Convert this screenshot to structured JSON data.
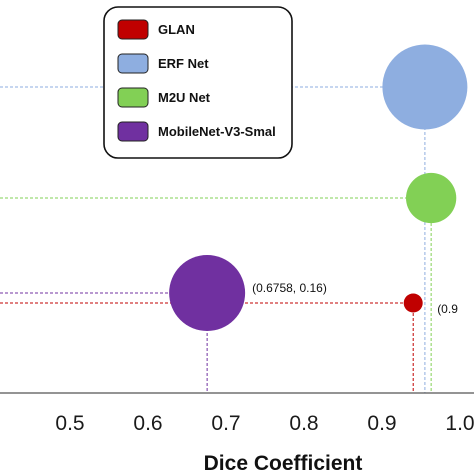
{
  "chart_data": {
    "type": "scatter",
    "title": "",
    "xlabel": "Dice Coefficient",
    "ylabel": "",
    "xlim": [
      0.45,
      1.0
    ],
    "x_ticks": [
      "0.5",
      "0.6",
      "0.7",
      "0.8",
      "0.9",
      "1.0"
    ],
    "legend_position": "top-center",
    "grid": false,
    "series": [
      {
        "name": "GLAN",
        "color": "#c00000",
        "x": 0.94,
        "size": 0.01
      },
      {
        "name": "ERF Net",
        "color": "#8eaee0",
        "x": 0.955,
        "size": 0.2
      },
      {
        "name": "M2U Net",
        "color": "#82d055",
        "x": 0.963,
        "size": 0.07
      },
      {
        "name": "MobileNet-V3-Smal",
        "color": "#7030a0",
        "x": 0.6758,
        "size": 0.16
      }
    ],
    "annotations": [
      {
        "text": "(0.6758, 0.16)",
        "series": "MobileNet-V3-Smal"
      },
      {
        "text": "(0.9",
        "series": "GLAN"
      }
    ]
  }
}
